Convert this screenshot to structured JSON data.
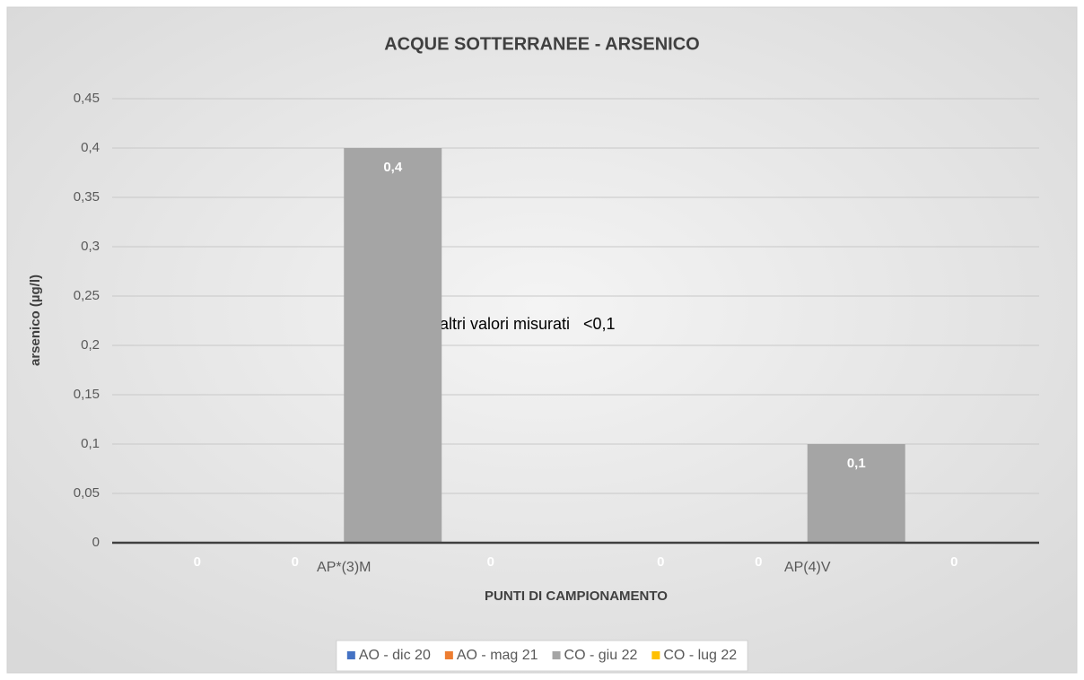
{
  "chart_data": {
    "type": "bar",
    "title": "ACQUE SOTTERRANEE - ARSENICO",
    "y_label": "arsenico (µg/l)",
    "x_label": "PUNTI DI CAMPIONAMENTO",
    "annotation": "altri valori misurati   <0,1",
    "categories": [
      "AP*(3)M",
      "AP(4)V"
    ],
    "series": [
      {
        "name": "AO - dic 20",
        "color": "#4472c4",
        "values": [
          0,
          0
        ]
      },
      {
        "name": "AO - mag 21",
        "color": "#ed7d31",
        "values": [
          0,
          0
        ]
      },
      {
        "name": "CO - giu 22",
        "color": "#a5a5a5",
        "values": [
          0.4,
          0.1
        ],
        "value_labels": [
          "0,4",
          "0,1"
        ]
      },
      {
        "name": "CO - lug 22",
        "color": "#ffc000",
        "values": [
          0,
          0
        ]
      }
    ],
    "ylim": [
      0,
      0.45
    ],
    "yticks": [
      0,
      {
        "value": 0.05,
        "label": "0,05"
      },
      {
        "value": 0.1,
        "label": "0,1"
      },
      {
        "value": 0.15,
        "label": "0,15"
      },
      {
        "value": 0.2,
        "label": "0,2"
      },
      {
        "value": 0.25,
        "label": "0,25"
      },
      {
        "value": 0.3,
        "label": "0,3"
      },
      {
        "value": 0.35,
        "label": "0,35"
      },
      {
        "value": 0.4,
        "label": "0,4"
      },
      {
        "value": 0.45,
        "label": "0,45"
      }
    ],
    "grid": true,
    "legend": "bottom"
  }
}
